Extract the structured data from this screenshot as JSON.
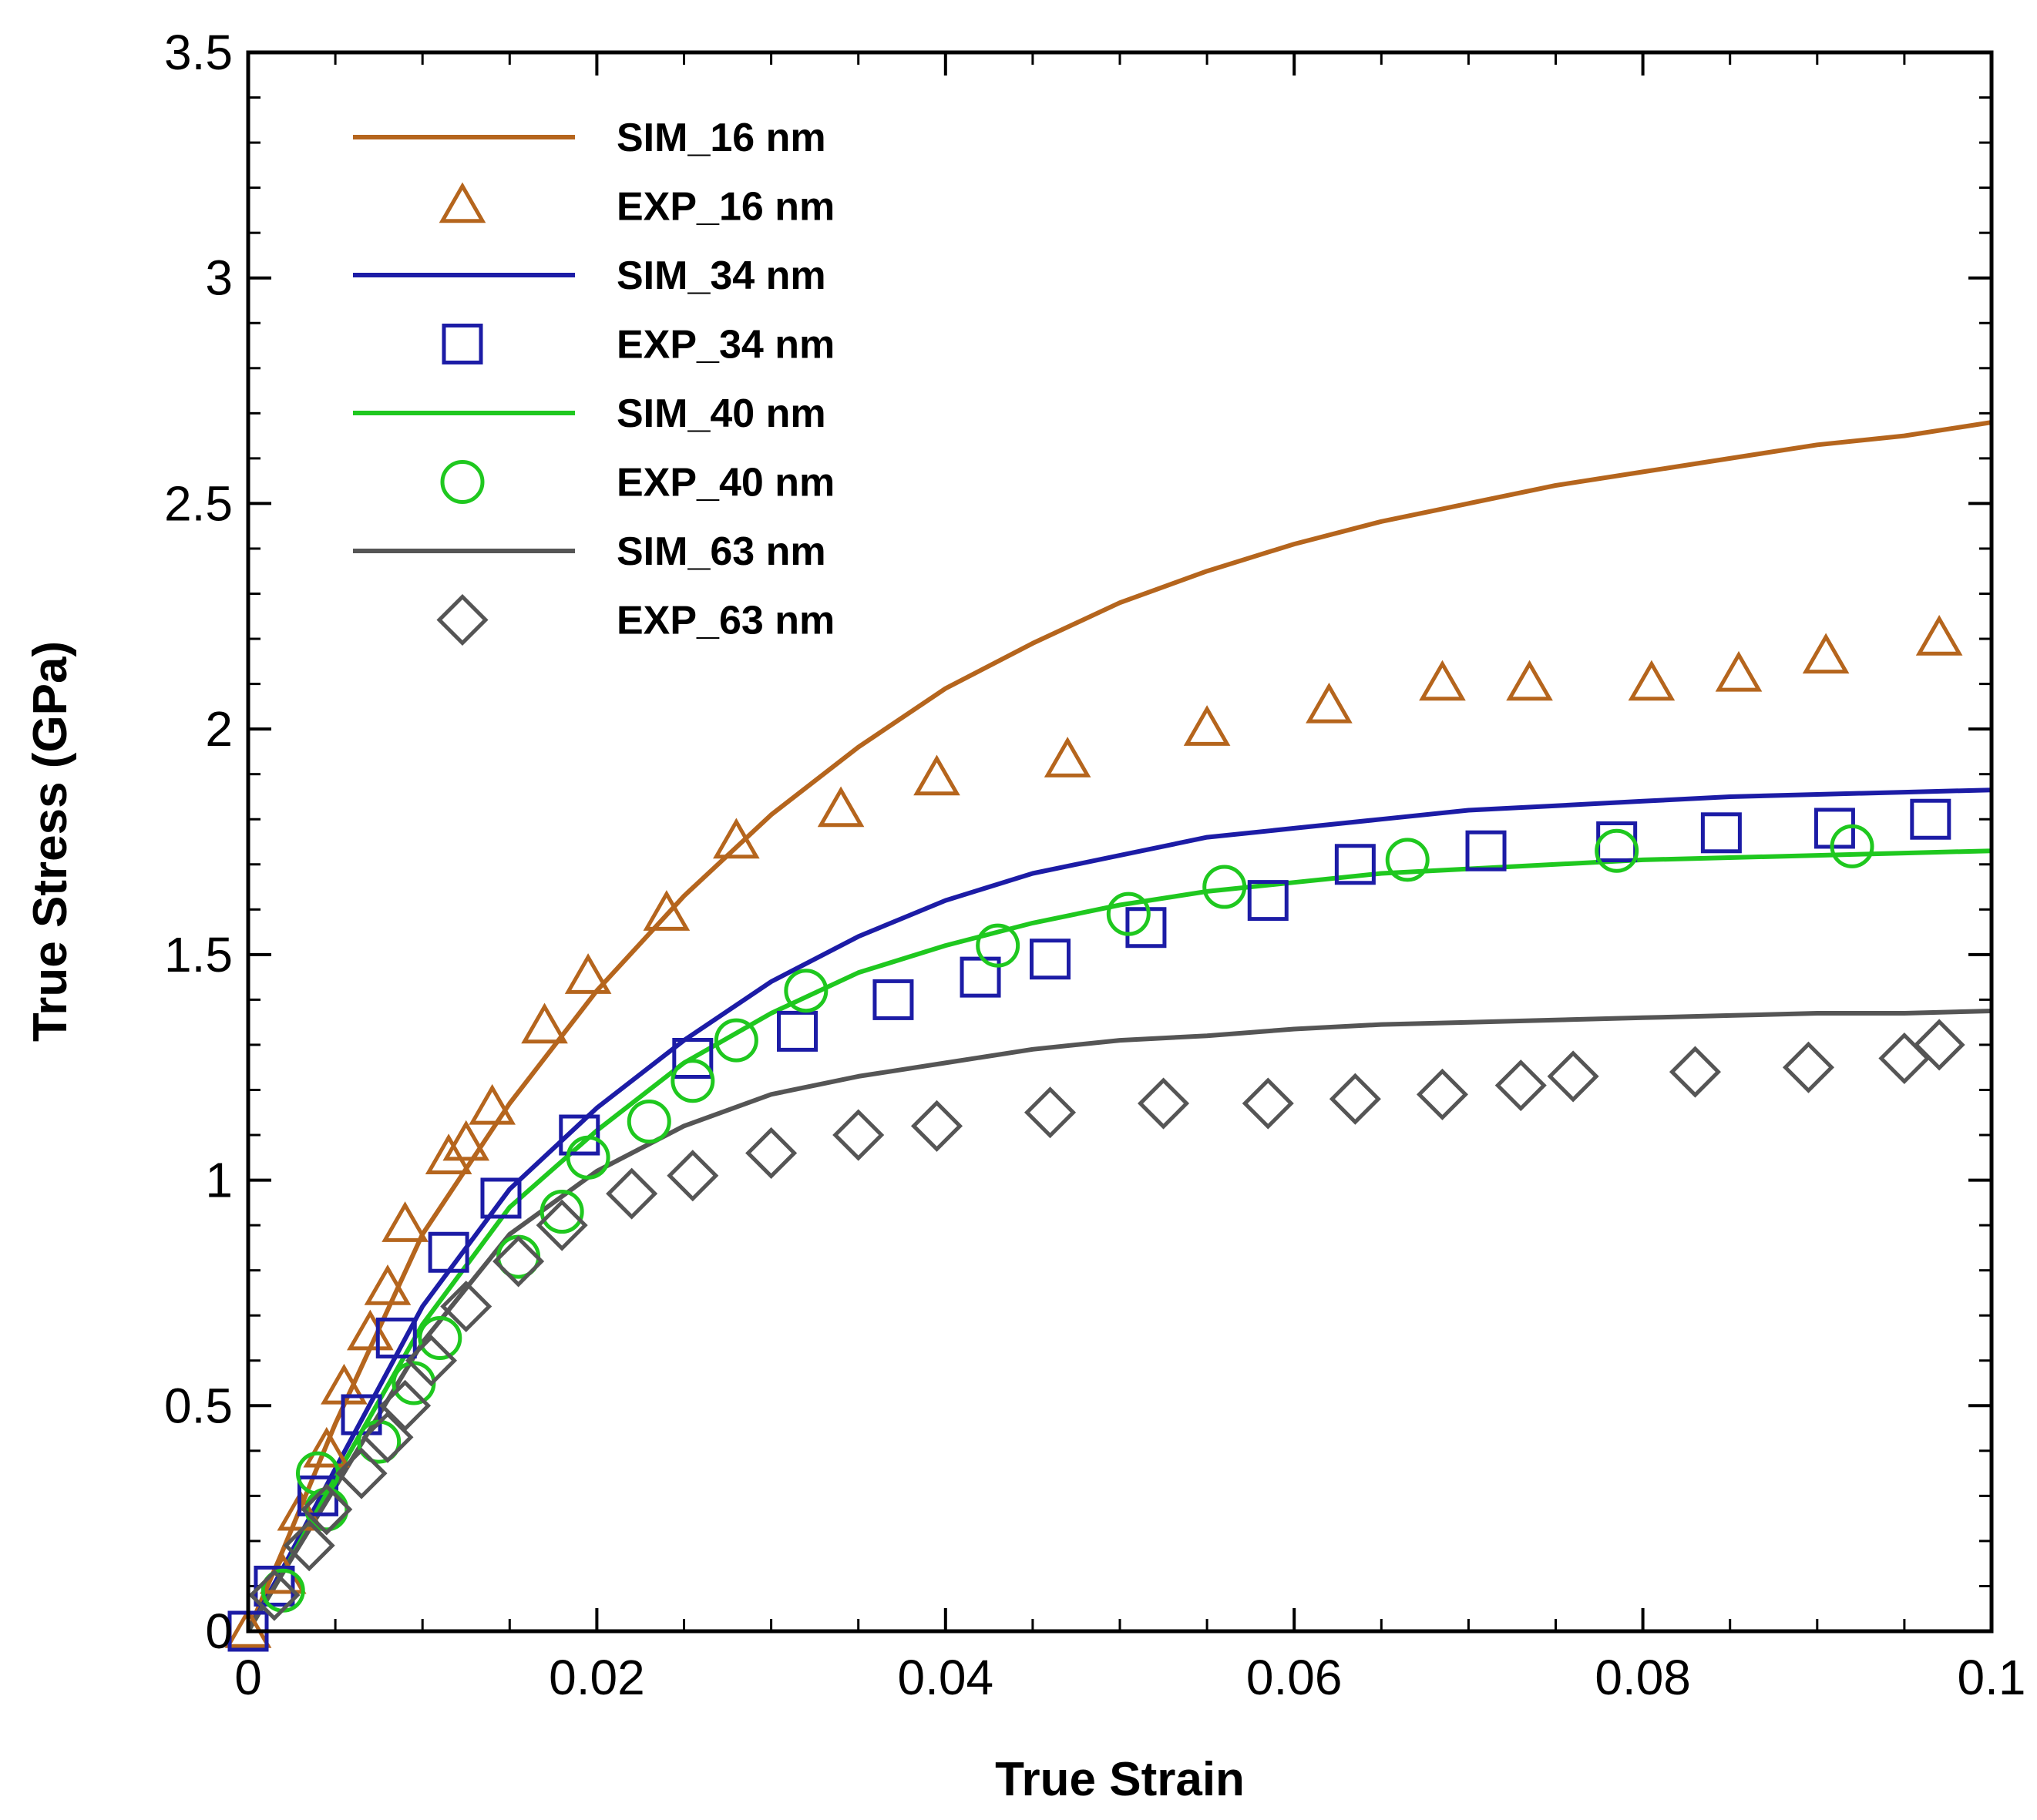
{
  "chart_data": {
    "type": "line",
    "title": "",
    "xlabel": "True Strain",
    "ylabel": "True Stress (GPa)",
    "xlim": [
      0,
      0.1
    ],
    "ylim": [
      0,
      3.5
    ],
    "x_ticks": [
      0,
      0.02,
      0.04,
      0.06,
      0.08,
      0.1
    ],
    "x_tick_labels": [
      "0",
      "0.02",
      "0.04",
      "0.06",
      "0.08",
      "0.1"
    ],
    "y_ticks": [
      0,
      0.5,
      1,
      1.5,
      2,
      2.5,
      3,
      3.5
    ],
    "y_tick_labels": [
      "0",
      "0.5",
      "1",
      "1.5",
      "2",
      "2.5",
      "3",
      "3.5"
    ],
    "grid": false,
    "legend_position": "top-left",
    "series": [
      {
        "name": "SIM_16 nm",
        "kind": "line",
        "color": "#b5651d",
        "x": [
          0,
          0.002,
          0.005,
          0.01,
          0.015,
          0.02,
          0.025,
          0.03,
          0.035,
          0.04,
          0.045,
          0.05,
          0.055,
          0.06,
          0.065,
          0.07,
          0.075,
          0.08,
          0.085,
          0.09,
          0.095,
          0.1
        ],
        "y": [
          0,
          0.18,
          0.46,
          0.88,
          1.17,
          1.42,
          1.63,
          1.81,
          1.96,
          2.09,
          2.19,
          2.28,
          2.35,
          2.41,
          2.46,
          2.5,
          2.54,
          2.57,
          2.6,
          2.63,
          2.65,
          2.68
        ]
      },
      {
        "name": "EXP_16 nm",
        "kind": "marker",
        "marker": "triangle",
        "color": "#b5651d",
        "x": [
          0,
          0.002,
          0.003,
          0.0045,
          0.0055,
          0.007,
          0.008,
          0.009,
          0.0115,
          0.0125,
          0.014,
          0.017,
          0.0195,
          0.024,
          0.028,
          0.034,
          0.0395,
          0.047,
          0.055,
          0.062,
          0.0685,
          0.0735,
          0.0805,
          0.0855,
          0.0905,
          0.097
        ],
        "y": [
          0,
          0.12,
          0.26,
          0.4,
          0.54,
          0.66,
          0.76,
          0.9,
          1.05,
          1.08,
          1.16,
          1.34,
          1.45,
          1.59,
          1.75,
          1.82,
          1.89,
          1.93,
          2.0,
          2.05,
          2.1,
          2.1,
          2.1,
          2.12,
          2.16,
          2.2
        ]
      },
      {
        "name": "SIM_34 nm",
        "kind": "line",
        "color": "#1c1ca6",
        "x": [
          0,
          0.002,
          0.005,
          0.01,
          0.015,
          0.02,
          0.025,
          0.03,
          0.035,
          0.04,
          0.045,
          0.05,
          0.055,
          0.06,
          0.065,
          0.07,
          0.075,
          0.08,
          0.085,
          0.09,
          0.095,
          0.1
        ],
        "y": [
          0,
          0.14,
          0.36,
          0.72,
          0.98,
          1.16,
          1.31,
          1.44,
          1.54,
          1.62,
          1.68,
          1.72,
          1.76,
          1.78,
          1.8,
          1.82,
          1.83,
          1.84,
          1.85,
          1.855,
          1.86,
          1.865
        ]
      },
      {
        "name": "EXP_34 nm",
        "kind": "marker",
        "marker": "square",
        "color": "#1c1ca6",
        "x": [
          0,
          0.0015,
          0.004,
          0.0065,
          0.0085,
          0.0115,
          0.0145,
          0.019,
          0.0255,
          0.0315,
          0.037,
          0.042,
          0.046,
          0.0515,
          0.0585,
          0.0635,
          0.071,
          0.0785,
          0.0845,
          0.091,
          0.0965
        ],
        "y": [
          0,
          0.1,
          0.3,
          0.48,
          0.65,
          0.84,
          0.96,
          1.1,
          1.27,
          1.33,
          1.4,
          1.45,
          1.49,
          1.56,
          1.62,
          1.7,
          1.73,
          1.75,
          1.77,
          1.78,
          1.8
        ]
      },
      {
        "name": "SIM_40 nm",
        "kind": "line",
        "color": "#1fc81f",
        "x": [
          0,
          0.002,
          0.005,
          0.01,
          0.015,
          0.02,
          0.025,
          0.03,
          0.035,
          0.04,
          0.045,
          0.05,
          0.055,
          0.06,
          0.065,
          0.07,
          0.075,
          0.08,
          0.085,
          0.09,
          0.095,
          0.1
        ],
        "y": [
          0,
          0.13,
          0.34,
          0.68,
          0.94,
          1.11,
          1.26,
          1.37,
          1.46,
          1.52,
          1.57,
          1.61,
          1.64,
          1.66,
          1.68,
          1.69,
          1.7,
          1.71,
          1.715,
          1.72,
          1.725,
          1.73
        ]
      },
      {
        "name": "EXP_40 nm",
        "kind": "marker",
        "marker": "circle",
        "color": "#1fc81f",
        "x": [
          0.002,
          0.004,
          0.0045,
          0.0075,
          0.0095,
          0.011,
          0.0155,
          0.018,
          0.0195,
          0.023,
          0.0255,
          0.028,
          0.032,
          0.043,
          0.0505,
          0.056,
          0.0665,
          0.0785,
          0.092
        ],
        "y": [
          0.09,
          0.35,
          0.27,
          0.42,
          0.55,
          0.65,
          0.83,
          0.93,
          1.05,
          1.13,
          1.22,
          1.31,
          1.42,
          1.52,
          1.59,
          1.65,
          1.71,
          1.73,
          1.74
        ]
      },
      {
        "name": "SIM_63 nm",
        "kind": "line",
        "color": "#555555",
        "x": [
          0,
          0.002,
          0.005,
          0.01,
          0.015,
          0.02,
          0.025,
          0.03,
          0.035,
          0.04,
          0.045,
          0.05,
          0.055,
          0.06,
          0.065,
          0.07,
          0.075,
          0.08,
          0.085,
          0.09,
          0.095,
          0.1
        ],
        "y": [
          0,
          0.13,
          0.32,
          0.64,
          0.88,
          1.02,
          1.12,
          1.19,
          1.23,
          1.26,
          1.29,
          1.31,
          1.32,
          1.335,
          1.345,
          1.35,
          1.355,
          1.36,
          1.365,
          1.37,
          1.37,
          1.375
        ]
      },
      {
        "name": "EXP_63 nm",
        "kind": "marker",
        "marker": "diamond",
        "color": "#555555",
        "x": [
          0.0015,
          0.0035,
          0.0045,
          0.0065,
          0.008,
          0.009,
          0.0105,
          0.0125,
          0.0155,
          0.018,
          0.022,
          0.0255,
          0.03,
          0.035,
          0.0395,
          0.046,
          0.0525,
          0.0585,
          0.0635,
          0.0685,
          0.073,
          0.076,
          0.083,
          0.0895,
          0.095,
          0.097
        ],
        "y": [
          0.08,
          0.19,
          0.27,
          0.35,
          0.43,
          0.5,
          0.6,
          0.72,
          0.82,
          0.9,
          0.97,
          1.01,
          1.06,
          1.1,
          1.12,
          1.15,
          1.17,
          1.17,
          1.18,
          1.19,
          1.21,
          1.23,
          1.24,
          1.25,
          1.27,
          1.3
        ]
      }
    ]
  }
}
